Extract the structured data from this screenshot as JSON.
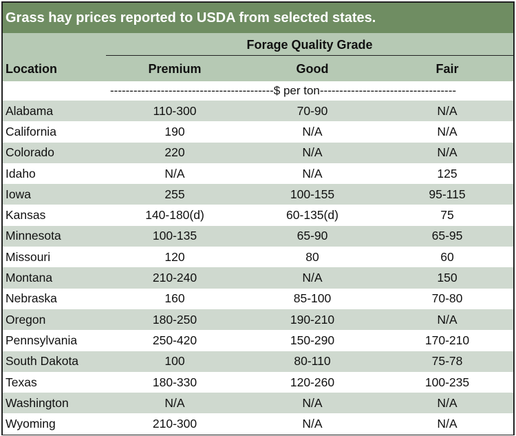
{
  "title": "Grass hay prices reported to USDA from selected states.",
  "group_header": "Forage Quality Grade",
  "columns": {
    "location": "Location",
    "premium": "Premium",
    "good": "Good",
    "fair": "Fair"
  },
  "units_line": "------------------------------------------$ per ton-----------------------------------",
  "rows": [
    {
      "location": "Alabama",
      "premium": "110-300",
      "good": "70-90",
      "fair": "N/A"
    },
    {
      "location": "California",
      "premium": "190",
      "good": "N/A",
      "fair": "N/A"
    },
    {
      "location": "Colorado",
      "premium": "220",
      "good": "N/A",
      "fair": "N/A"
    },
    {
      "location": "Idaho",
      "premium": "N/A",
      "good": "N/A",
      "fair": "125"
    },
    {
      "location": "Iowa",
      "premium": "255",
      "good": "100-155",
      "fair": "95-115"
    },
    {
      "location": "Kansas",
      "premium": "140-180(d)",
      "good": "60-135(d)",
      "fair": "75"
    },
    {
      "location": "Minnesota",
      "premium": "100-135",
      "good": "65-90",
      "fair": "65-95"
    },
    {
      "location": "Missouri",
      "premium": "120",
      "good": "80",
      "fair": "60"
    },
    {
      "location": "Montana",
      "premium": "210-240",
      "good": "N/A",
      "fair": "150"
    },
    {
      "location": "Nebraska",
      "premium": "160",
      "good": "85-100",
      "fair": "70-80"
    },
    {
      "location": "Oregon",
      "premium": "180-250",
      "good": "190-210",
      "fair": "N/A"
    },
    {
      "location": "Pennsylvania",
      "premium": "250-420",
      "good": "150-290",
      "fair": "170-210"
    },
    {
      "location": "South Dakota",
      "premium": "100",
      "good": "80-110",
      "fair": "75-78"
    },
    {
      "location": "Texas",
      "premium": "180-330",
      "good": "120-260",
      "fair": "100-235"
    },
    {
      "location": "Washington",
      "premium": "N/A",
      "good": "N/A",
      "fair": "N/A"
    },
    {
      "location": "Wyoming",
      "premium": "210-300",
      "good": "N/A",
      "fair": "N/A"
    }
  ],
  "colors": {
    "title_bg": "#6f8d62",
    "header_bg": "#b6c9b4",
    "row_shade": "#cfd9cf"
  }
}
